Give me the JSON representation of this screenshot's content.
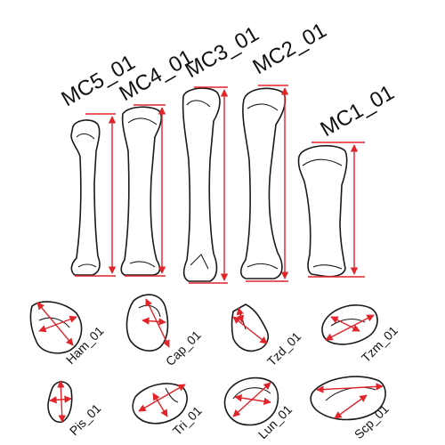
{
  "metacarpals": [
    {
      "label": "MC5_01"
    },
    {
      "label": "MC4_01"
    },
    {
      "label": "MC3_01"
    },
    {
      "label": "MC2_01"
    },
    {
      "label": "MC1_01"
    }
  ],
  "carpals": [
    {
      "label": "Ham_01"
    },
    {
      "label": "Cap_01"
    },
    {
      "label": "Tzd_01"
    },
    {
      "label": "Tzm_01"
    },
    {
      "label": "Pis_01"
    },
    {
      "label": "Tri_01"
    },
    {
      "label": "Lun_01"
    },
    {
      "label": "Scp_01"
    }
  ],
  "colors": {
    "measurement_line": "#e0242a",
    "outline": "#1a1a1a",
    "background": "#ffffff"
  }
}
